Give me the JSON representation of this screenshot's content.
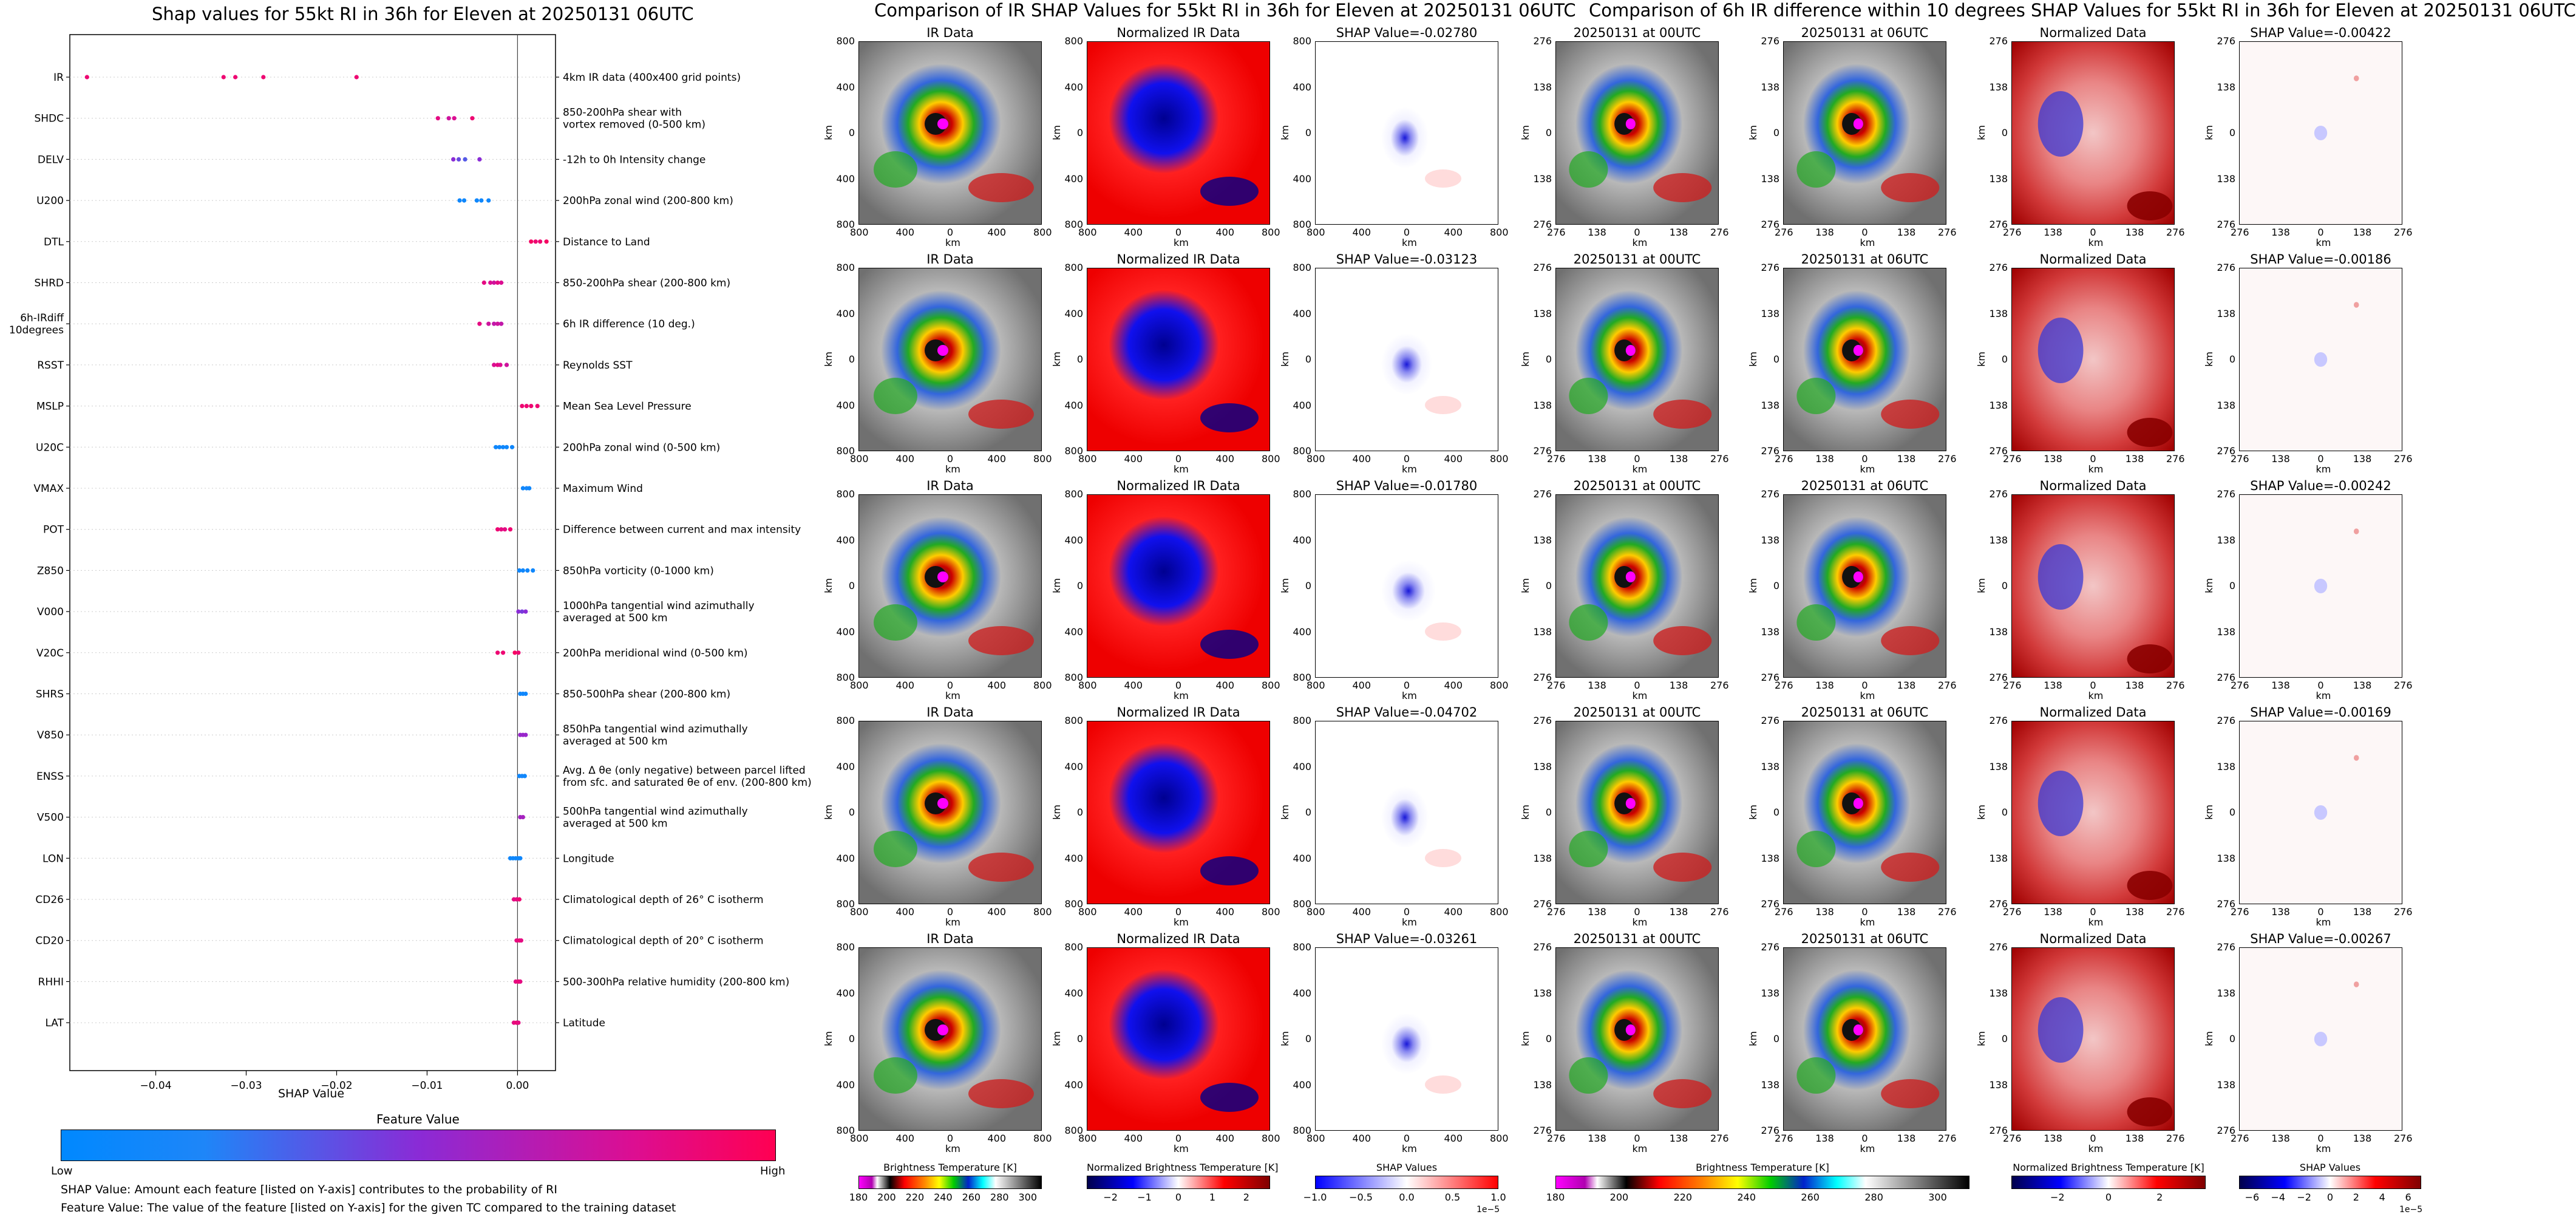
{
  "left": {
    "title": "Shap values for 55kt RI in 36h for Eleven at 20250131 06UTC",
    "xlabel": "SHAP Value",
    "colorbar_title": "Feature Value",
    "colorbar_low": "Low",
    "colorbar_high": "High",
    "note1": "SHAP Value: Amount each feature [listed on Y-axis] contributes to the probability of RI",
    "note2": "Feature Value: The value of the feature [listed on Y-axis] for the given TC compared to the training dataset"
  },
  "chart_data": [
    {
      "type": "scatter",
      "title": "Shap values for 55kt RI in 36h for Eleven at 20250131 06UTC",
      "xlabel": "SHAP Value",
      "xlim": [
        -0.0495,
        0.0042
      ],
      "xticks": [
        "−0.04",
        "−0.03",
        "−0.02",
        "−0.01",
        "0.00"
      ],
      "xtick_values": [
        -0.04,
        -0.03,
        -0.02,
        -0.01,
        0.0
      ],
      "features": [
        {
          "name": "IR",
          "desc": "4km IR data (400x400 grid points)",
          "points": [
            [
              -0.0476,
              0.9
            ],
            [
              -0.0325,
              0.9
            ],
            [
              -0.0312,
              0.9
            ],
            [
              -0.0281,
              0.9
            ],
            [
              -0.0178,
              0.9
            ]
          ]
        },
        {
          "name": "SHDC",
          "desc": "850-200hPa shear with\nvortex removed (0-500 km)",
          "points": [
            [
              -0.0088,
              0.85
            ],
            [
              -0.0076,
              0.75
            ],
            [
              -0.007,
              0.8
            ],
            [
              -0.005,
              0.9
            ]
          ]
        },
        {
          "name": "DELV",
          "desc": "-12h to 0h Intensity change",
          "points": [
            [
              -0.0071,
              0.5
            ],
            [
              -0.0065,
              0.4
            ],
            [
              -0.0058,
              0.35
            ],
            [
              -0.0042,
              0.5
            ]
          ]
        },
        {
          "name": "U200",
          "desc": "200hPa zonal wind (200-800 km)",
          "points": [
            [
              -0.0064,
              0.1
            ],
            [
              -0.0059,
              0.1
            ],
            [
              -0.0045,
              0.1
            ],
            [
              -0.004,
              0.1
            ],
            [
              -0.0032,
              0.1
            ]
          ]
        },
        {
          "name": "DTL",
          "desc": "Distance to Land",
          "points": [
            [
              0.0015,
              0.95
            ],
            [
              0.002,
              0.9
            ],
            [
              0.0025,
              0.9
            ],
            [
              0.0032,
              0.95
            ]
          ]
        },
        {
          "name": "SHRD",
          "desc": "850-200hPa shear (200-800 km)",
          "points": [
            [
              -0.0037,
              0.85
            ],
            [
              -0.003,
              0.8
            ],
            [
              -0.0026,
              0.75
            ],
            [
              -0.0022,
              0.85
            ],
            [
              -0.0018,
              0.8
            ]
          ]
        },
        {
          "name": "6h-IRdiff\n10degrees",
          "desc": "6h IR difference (10 deg.)",
          "points": [
            [
              -0.0042,
              0.85
            ],
            [
              -0.0032,
              0.75
            ],
            [
              -0.0026,
              0.7
            ],
            [
              -0.0022,
              0.75
            ],
            [
              -0.0018,
              0.7
            ]
          ]
        },
        {
          "name": "RSST",
          "desc": "Reynolds SST",
          "points": [
            [
              -0.0026,
              0.8
            ],
            [
              -0.0022,
              0.85
            ],
            [
              -0.0019,
              0.8
            ],
            [
              -0.0012,
              0.75
            ]
          ]
        },
        {
          "name": "MSLP",
          "desc": "Mean Sea Level Pressure",
          "points": [
            [
              0.0005,
              0.9
            ],
            [
              0.001,
              0.9
            ],
            [
              0.0015,
              0.9
            ],
            [
              0.0022,
              0.9
            ]
          ]
        },
        {
          "name": "U20C",
          "desc": "200hPa zonal wind (0-500 km)",
          "points": [
            [
              -0.0024,
              0.1
            ],
            [
              -0.002,
              0.1
            ],
            [
              -0.0016,
              0.1
            ],
            [
              -0.0012,
              0.1
            ],
            [
              -0.0006,
              0.1
            ]
          ]
        },
        {
          "name": "VMAX",
          "desc": "Maximum Wind",
          "points": [
            [
              0.0006,
              0.1
            ],
            [
              0.001,
              0.15
            ],
            [
              0.0013,
              0.1
            ]
          ]
        },
        {
          "name": "POT",
          "desc": "Difference between current and max intensity",
          "points": [
            [
              -0.0022,
              0.9
            ],
            [
              -0.0018,
              0.85
            ],
            [
              -0.0014,
              0.85
            ],
            [
              -0.0008,
              0.9
            ]
          ]
        },
        {
          "name": "Z850",
          "desc": "850hPa vorticity (0-1000 km)",
          "points": [
            [
              0.0002,
              0.1
            ],
            [
              0.0006,
              0.1
            ],
            [
              0.0011,
              0.1
            ],
            [
              0.0017,
              0.1
            ]
          ]
        },
        {
          "name": "V000",
          "desc": "1000hPa tangential wind azimuthally\naveraged at 500 km",
          "points": [
            [
              0.0001,
              0.5
            ],
            [
              0.0005,
              0.45
            ],
            [
              0.0009,
              0.5
            ]
          ]
        },
        {
          "name": "V20C",
          "desc": "200hPa meridional wind (0-500 km)",
          "points": [
            [
              -0.0022,
              0.9
            ],
            [
              -0.0016,
              0.9
            ],
            [
              -0.0003,
              0.95
            ],
            [
              0.0001,
              0.9
            ]
          ]
        },
        {
          "name": "SHRS",
          "desc": "850-500hPa shear (200-800 km)",
          "points": [
            [
              0.0003,
              0.1
            ],
            [
              0.0006,
              0.1
            ],
            [
              0.0009,
              0.1
            ]
          ]
        },
        {
          "name": "V850",
          "desc": "850hPa tangential wind azimuthally\naveraged at 500 km",
          "points": [
            [
              0.0003,
              0.55
            ],
            [
              0.0006,
              0.55
            ],
            [
              0.0009,
              0.55
            ]
          ]
        },
        {
          "name": "ENSS",
          "desc": "Avg. Δ θe (only negative) between parcel lifted\nfrom sfc. and saturated θe of env. (200-800 km)",
          "points": [
            [
              0.0002,
              0.1
            ],
            [
              0.0005,
              0.15
            ],
            [
              0.0008,
              0.1
            ]
          ]
        },
        {
          "name": "V500",
          "desc": "500hPa tangential wind azimuthally\naveraged at 500 km",
          "points": [
            [
              0.0003,
              0.6
            ],
            [
              0.0006,
              0.6
            ]
          ]
        },
        {
          "name": "LON",
          "desc": "Longitude",
          "points": [
            [
              -0.0008,
              0.1
            ],
            [
              -0.0005,
              0.1
            ],
            [
              -0.0002,
              0.1
            ],
            [
              0.0001,
              0.1
            ],
            [
              0.0003,
              0.1
            ]
          ]
        },
        {
          "name": "CD26",
          "desc": "Climatological depth of 26° C isotherm",
          "points": [
            [
              -0.0004,
              0.85
            ],
            [
              -0.0001,
              0.85
            ],
            [
              0.0002,
              0.9
            ]
          ]
        },
        {
          "name": "CD20",
          "desc": "Climatological depth of 20° C isotherm",
          "points": [
            [
              -0.0001,
              0.85
            ],
            [
              0.0002,
              0.9
            ],
            [
              0.0004,
              0.85
            ]
          ]
        },
        {
          "name": "RHHI",
          "desc": "500-300hPa relative humidity (200-800 km)",
          "points": [
            [
              -0.0002,
              0.85
            ],
            [
              0.0001,
              0.9
            ],
            [
              0.0003,
              0.85
            ]
          ]
        },
        {
          "name": "LAT",
          "desc": "Latitude",
          "points": [
            [
              -0.0004,
              0.85
            ],
            [
              -0.0001,
              0.9
            ],
            [
              0.0001,
              0.85
            ]
          ]
        }
      ]
    },
    {
      "type": "heatmap",
      "title": "Comparison of IR SHAP Values for 55kt RI in 36h for Eleven at 20250131 06UTC",
      "column_titles": [
        "IR Data",
        "Normalized IR Data"
      ],
      "shap_titles": [
        "SHAP Value=-0.02780",
        "SHAP Value=-0.03123",
        "SHAP Value=-0.01780",
        "SHAP Value=-0.04702",
        "SHAP Value=-0.03261"
      ],
      "shap_values": [
        -0.0278,
        -0.03123,
        -0.0178,
        -0.04702,
        -0.03261
      ],
      "xlabel": "km",
      "ylabel": "km",
      "xticks": [
        "800",
        "400",
        "0",
        "400",
        "800"
      ],
      "yticks": [
        "800",
        "400",
        "0",
        "400",
        "800"
      ],
      "colorbars": [
        {
          "label": "Brightness Temperature [K]",
          "ticks": [
            "180",
            "200",
            "220",
            "240",
            "260",
            "280",
            "300"
          ],
          "range": [
            180,
            310
          ]
        },
        {
          "label": "Normalized Brightness Temperature [K]",
          "ticks": [
            "−2",
            "−1",
            "0",
            "1",
            "2"
          ],
          "range": [
            -2.7,
            2.7
          ]
        },
        {
          "label": "SHAP Values",
          "ticks": [
            "−1.0",
            "−0.5",
            "0.0",
            "0.5",
            "1.0"
          ],
          "range": [
            -1.0,
            1.0
          ],
          "offset": "1e−5"
        }
      ]
    },
    {
      "type": "heatmap",
      "title": "Comparison of 6h IR difference within 10 degrees SHAP Values for 55kt RI in 36h for Eleven at 20250131 06UTC",
      "column_titles": [
        "20250131 at 00UTC",
        "20250131 at 06UTC",
        "Normalized Data"
      ],
      "shap_titles": [
        "SHAP Value=-0.00422",
        "SHAP Value=-0.00186",
        "SHAP Value=-0.00242",
        "SHAP Value=-0.00169",
        "SHAP Value=-0.00267"
      ],
      "shap_values": [
        -0.00422,
        -0.00186,
        -0.00242,
        -0.00169,
        -0.00267
      ],
      "xlabel": "km",
      "ylabel": "km",
      "xticks": [
        "276",
        "138",
        "0",
        "138",
        "276"
      ],
      "yticks": [
        "276",
        "138",
        "0",
        "138",
        "276"
      ],
      "colorbars": [
        {
          "label": "Brightness Temperature [K]",
          "ticks": [
            "180",
            "200",
            "220",
            "240",
            "260",
            "280",
            "300"
          ],
          "range": [
            180,
            310
          ]
        },
        {
          "label": "Normalized Brightness Temperature [K]",
          "ticks": [
            "−2",
            "0",
            "2"
          ],
          "range": [
            -3.8,
            3.8
          ]
        },
        {
          "label": "SHAP Values",
          "ticks": [
            "−6",
            "−4",
            "−2",
            "0",
            "2",
            "4",
            "6"
          ],
          "range": [
            -7,
            7
          ],
          "offset": "1e−5"
        }
      ]
    }
  ]
}
